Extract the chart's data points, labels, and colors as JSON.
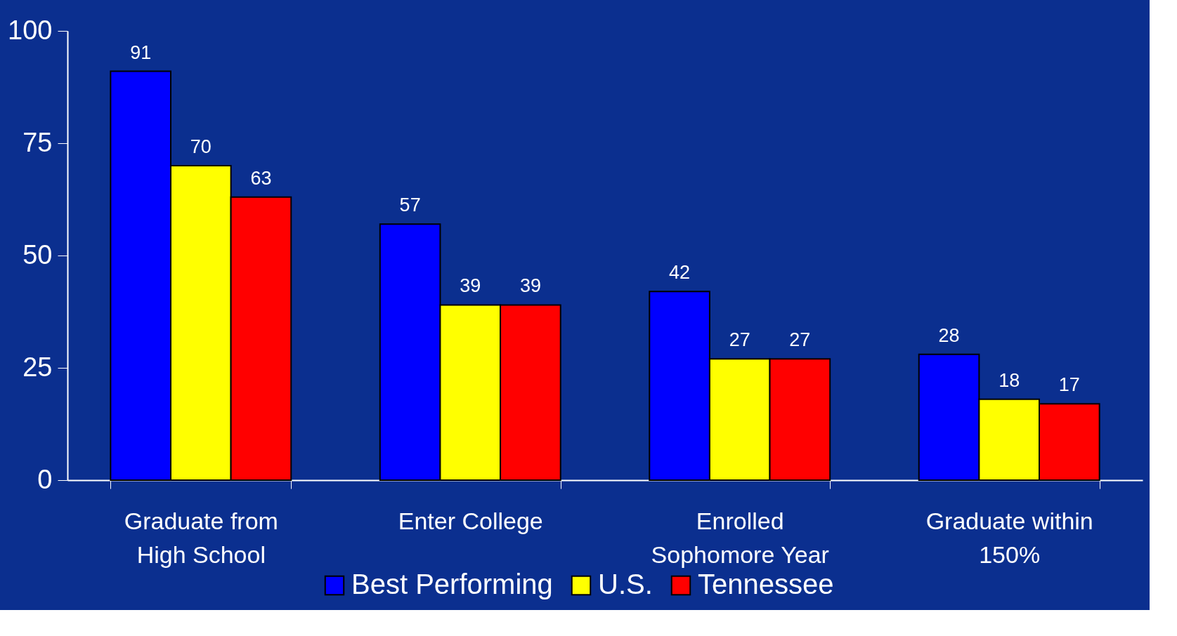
{
  "chart_data": {
    "type": "bar",
    "categories": [
      "Graduate from\nHigh School",
      "Enter College",
      "Enrolled\nSophomore Year",
      "Graduate within\n150%"
    ],
    "series": [
      {
        "name": "Best Performing",
        "color": "#0000ff",
        "values": [
          91,
          57,
          42,
          28
        ]
      },
      {
        "name": "U.S.",
        "color": "#ffff00",
        "values": [
          70,
          39,
          27,
          18
        ]
      },
      {
        "name": "Tennessee",
        "color": "#ff0000",
        "values": [
          63,
          39,
          27,
          17
        ]
      }
    ],
    "ylim": [
      0,
      100
    ],
    "yticks": [
      0,
      25,
      50,
      75,
      100
    ],
    "grid": false,
    "legend": "bottom",
    "data_labels": true
  }
}
